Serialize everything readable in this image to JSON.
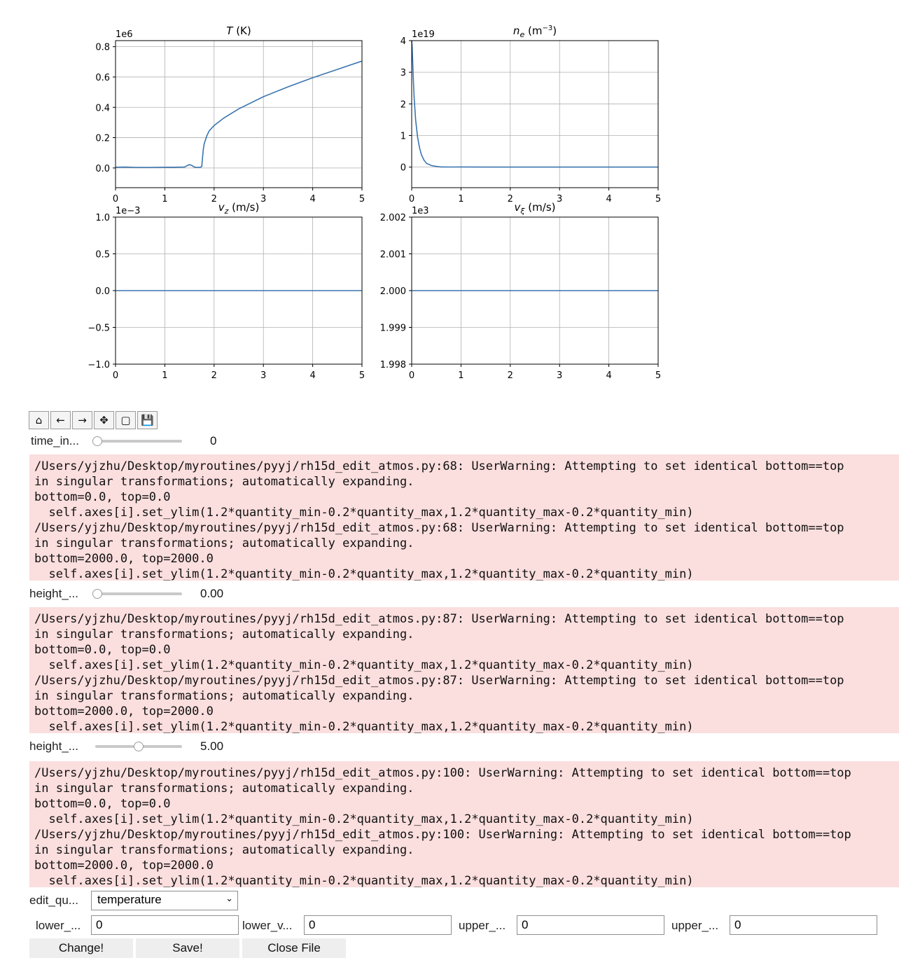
{
  "chart_data": [
    {
      "type": "line",
      "title_symbol": "T",
      "title_unit": "(K)",
      "offset_label": "1e6",
      "xlim": [
        0,
        5
      ],
      "ylim": [
        -0.13,
        0.84
      ],
      "xticks": [
        "0",
        "1",
        "2",
        "3",
        "4",
        "5"
      ],
      "yticks": [
        {
          "v": 0.0,
          "label": "0.0"
        },
        {
          "v": 0.2,
          "label": "0.2"
        },
        {
          "v": 0.4,
          "label": "0.4"
        },
        {
          "v": 0.6,
          "label": "0.6"
        },
        {
          "v": 0.8,
          "label": "0.8"
        }
      ],
      "grid": true,
      "series": [
        {
          "name": "T",
          "color": "#3a75b0",
          "x": [
            0,
            0.2,
            0.4,
            0.6,
            0.8,
            1.0,
            1.2,
            1.4,
            1.45,
            1.5,
            1.55,
            1.6,
            1.65,
            1.72,
            1.75,
            1.76,
            1.78,
            1.8,
            1.85,
            1.9,
            2.0,
            2.2,
            2.5,
            3.0,
            3.5,
            4.0,
            4.5,
            5.0
          ],
          "y": [
            0.005,
            0.006,
            0.004,
            0.003,
            0.004,
            0.005,
            0.005,
            0.006,
            0.015,
            0.022,
            0.016,
            0.006,
            0.004,
            0.005,
            0.01,
            0.05,
            0.12,
            0.16,
            0.21,
            0.245,
            0.28,
            0.33,
            0.39,
            0.47,
            0.535,
            0.595,
            0.65,
            0.705
          ]
        }
      ]
    },
    {
      "type": "line",
      "title_symbol": "n",
      "title_sub": "e",
      "title_unit": "(m",
      "title_sup": "−3",
      "title_close": ")",
      "offset_label": "1e19",
      "xlim": [
        0,
        5
      ],
      "ylim": [
        -0.65,
        4.0
      ],
      "xticks": [
        "0",
        "1",
        "2",
        "3",
        "4",
        "5"
      ],
      "yticks": [
        {
          "v": 0,
          "label": "0"
        },
        {
          "v": 1,
          "label": "1"
        },
        {
          "v": 2,
          "label": "2"
        },
        {
          "v": 3,
          "label": "3"
        },
        {
          "v": 4,
          "label": "4"
        }
      ],
      "grid": true,
      "series": [
        {
          "name": "n_e",
          "color": "#3a75b0",
          "x": [
            0,
            0.01,
            0.03,
            0.05,
            0.08,
            0.12,
            0.16,
            0.2,
            0.25,
            0.3,
            0.4,
            0.5,
            0.6,
            0.8,
            1.0,
            1.5,
            2.0,
            3.0,
            4.0,
            5.0
          ],
          "y": [
            4.0,
            3.8,
            2.9,
            2.2,
            1.5,
            0.95,
            0.6,
            0.38,
            0.22,
            0.12,
            0.05,
            0.02,
            0.005,
            0.003,
            0.006,
            0.002,
            0.0,
            0.0,
            0.0,
            0.0
          ]
        }
      ]
    },
    {
      "type": "line",
      "title_symbol": "v",
      "title_sub": "z",
      "title_unit": "(m/s)",
      "offset_label": "1e−3",
      "xlim": [
        0,
        5
      ],
      "ylim": [
        -1.0,
        1.0
      ],
      "xticks": [
        "0",
        "1",
        "2",
        "3",
        "4",
        "5"
      ],
      "yticks": [
        {
          "v": -1.0,
          "label": "−1.0"
        },
        {
          "v": -0.5,
          "label": "−0.5"
        },
        {
          "v": 0.0,
          "label": "0.0"
        },
        {
          "v": 0.5,
          "label": "0.5"
        },
        {
          "v": 1.0,
          "label": "1.0"
        }
      ],
      "grid": true,
      "series": [
        {
          "name": "v_z",
          "color": "#3a75b0",
          "x": [
            0,
            5
          ],
          "y": [
            0,
            0
          ]
        }
      ]
    },
    {
      "type": "line",
      "title_symbol": "v",
      "title_sub": "ξ",
      "title_unit": "(m/s)",
      "offset_label": "1e3",
      "xlim": [
        0,
        5
      ],
      "ylim": [
        1.998,
        2.002
      ],
      "xticks": [
        "0",
        "1",
        "2",
        "3",
        "4",
        "5"
      ],
      "yticks": [
        {
          "v": 1.998,
          "label": "1.998"
        },
        {
          "v": 1.999,
          "label": "1.999"
        },
        {
          "v": 2.0,
          "label": "2.000"
        },
        {
          "v": 2.001,
          "label": "2.001"
        },
        {
          "v": 2.002,
          "label": "2.002"
        }
      ],
      "grid": true,
      "series": [
        {
          "name": "v_xi",
          "color": "#3a75b0",
          "x": [
            0,
            5
          ],
          "y": [
            2.0,
            2.0
          ]
        }
      ]
    }
  ],
  "toolbar": {
    "buttons": [
      {
        "name": "home-icon",
        "glyph": "⌂"
      },
      {
        "name": "back-arrow-icon",
        "glyph": "←"
      },
      {
        "name": "forward-arrow-icon",
        "glyph": "→"
      },
      {
        "name": "pan-move-icon",
        "glyph": "✥"
      },
      {
        "name": "zoom-rect-icon",
        "glyph": "▢"
      },
      {
        "name": "save-figure-icon",
        "glyph": "💾"
      }
    ]
  },
  "slider_time": {
    "label": "time_in...",
    "value": "0",
    "fraction": 0.0
  },
  "warnings1": [
    "/Users/yjzhu/Desktop/myroutines/pyyj/rh15d_edit_atmos.py:68: UserWarning: Attempting to set identical bottom==top",
    "in singular transformations; automatically expanding.",
    "bottom=0.0, top=0.0",
    "  self.axes[i].set_ylim(1.2*quantity_min-0.2*quantity_max,1.2*quantity_max-0.2*quantity_min)",
    "/Users/yjzhu/Desktop/myroutines/pyyj/rh15d_edit_atmos.py:68: UserWarning: Attempting to set identical bottom==top",
    "in singular transformations; automatically expanding.",
    "bottom=2000.0, top=2000.0",
    "  self.axes[i].set_ylim(1.2*quantity_min-0.2*quantity_max,1.2*quantity_max-0.2*quantity_min)"
  ],
  "slider_height1": {
    "label": "height_...",
    "value": "0.00",
    "fraction": 0.0
  },
  "warnings2": [
    "/Users/yjzhu/Desktop/myroutines/pyyj/rh15d_edit_atmos.py:87: UserWarning: Attempting to set identical bottom==top",
    "in singular transformations; automatically expanding.",
    "bottom=0.0, top=0.0",
    "  self.axes[i].set_ylim(1.2*quantity_min-0.2*quantity_max,1.2*quantity_max-0.2*quantity_min)",
    "/Users/yjzhu/Desktop/myroutines/pyyj/rh15d_edit_atmos.py:87: UserWarning: Attempting to set identical bottom==top",
    "in singular transformations; automatically expanding.",
    "bottom=2000.0, top=2000.0",
    "  self.axes[i].set_ylim(1.2*quantity_min-0.2*quantity_max,1.2*quantity_max-0.2*quantity_min)"
  ],
  "slider_height2": {
    "label": "height_...",
    "value": "5.00",
    "fraction": 0.5
  },
  "warnings3": [
    "/Users/yjzhu/Desktop/myroutines/pyyj/rh15d_edit_atmos.py:100: UserWarning: Attempting to set identical bottom==top",
    "in singular transformations; automatically expanding.",
    "bottom=0.0, top=0.0",
    "  self.axes[i].set_ylim(1.2*quantity_min-0.2*quantity_max,1.2*quantity_max-0.2*quantity_min)",
    "/Users/yjzhu/Desktop/myroutines/pyyj/rh15d_edit_atmos.py:100: UserWarning: Attempting to set identical bottom==top",
    "in singular transformations; automatically expanding.",
    "bottom=2000.0, top=2000.0",
    "  self.axes[i].set_ylim(1.2*quantity_min-0.2*quantity_max,1.2*quantity_max-0.2*quantity_min)"
  ],
  "edit": {
    "label": "edit_qu...",
    "selected": "temperature"
  },
  "fields": [
    {
      "label": "lower_...",
      "value": "0"
    },
    {
      "label": "lower_v...",
      "value": "0"
    },
    {
      "label": "upper_...",
      "value": "0"
    },
    {
      "label": "upper_...",
      "value": "0"
    }
  ],
  "buttons": {
    "change": "Change!",
    "save": "Save!",
    "close": "Close File"
  }
}
